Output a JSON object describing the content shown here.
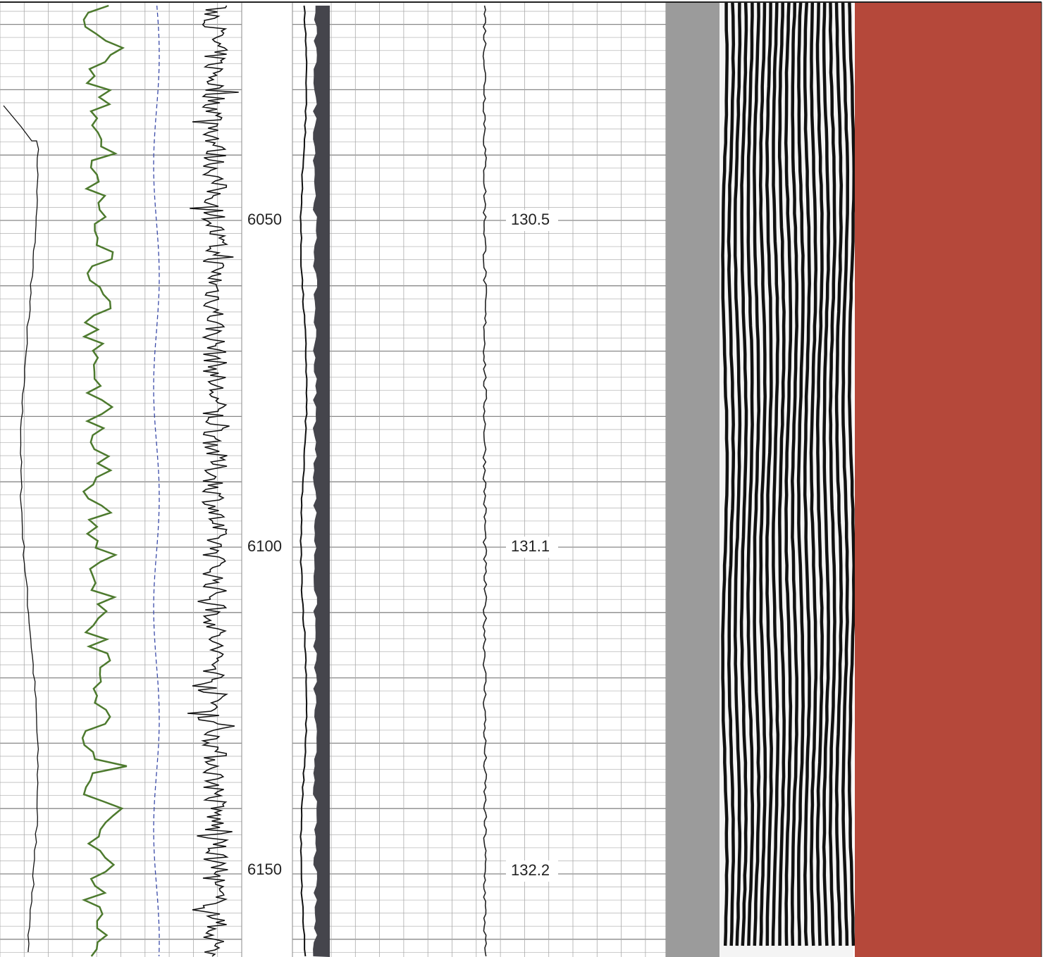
{
  "depth_track": {
    "labels": [
      "6050",
      "6100",
      "6150"
    ]
  },
  "time_track": {
    "labels": [
      "130.5",
      "131.1",
      "132.2"
    ]
  }
}
